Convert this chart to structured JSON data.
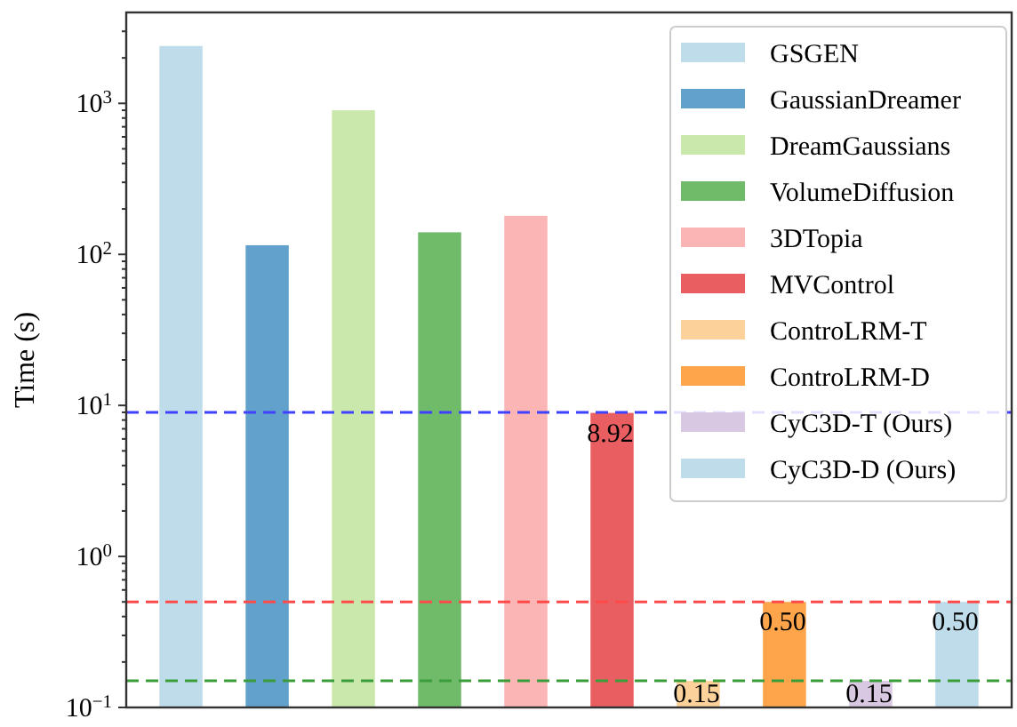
{
  "chart_data": {
    "type": "bar",
    "ylabel": "Time (s)",
    "categories": [
      null,
      null,
      null,
      null,
      null,
      null,
      null,
      null,
      null,
      null
    ],
    "series": [
      {
        "name": "GSGEN",
        "color": "#bfdcea",
        "values": [
          2400,
          null,
          null,
          null,
          null,
          null,
          null,
          null,
          null,
          null
        ]
      },
      {
        "name": "GaussianDreamer",
        "color": "#62a1cb",
        "values": [
          null,
          115,
          null,
          null,
          null,
          null,
          null,
          null,
          null,
          null
        ]
      },
      {
        "name": "DreamGaussians",
        "color": "#cbe8ac",
        "values": [
          null,
          null,
          900,
          null,
          null,
          null,
          null,
          null,
          null,
          null
        ]
      },
      {
        "name": "VolumeDiffusion",
        "color": "#70bb6a",
        "values": [
          null,
          null,
          null,
          140,
          null,
          null,
          null,
          null,
          null,
          null
        ]
      },
      {
        "name": "3DTopia",
        "color": "#fbb5b4",
        "values": [
          null,
          null,
          null,
          null,
          180,
          null,
          null,
          null,
          null,
          null
        ]
      },
      {
        "name": "MVControl",
        "color": "#e95e60",
        "values": [
          null,
          null,
          null,
          null,
          null,
          8.92,
          null,
          null,
          null,
          null
        ],
        "value_labels": [
          null,
          null,
          null,
          null,
          null,
          "8.92",
          null,
          null,
          null,
          null
        ]
      },
      {
        "name": "ControLRM-T",
        "color": "#fdd29a",
        "values": [
          null,
          null,
          null,
          null,
          null,
          null,
          0.15,
          null,
          null,
          null
        ],
        "value_labels": [
          null,
          null,
          null,
          null,
          null,
          null,
          "0.15",
          null,
          null,
          null
        ]
      },
      {
        "name": "ControLRM-D",
        "color": "#fea44a",
        "values": [
          null,
          null,
          null,
          null,
          null,
          null,
          null,
          0.5,
          null,
          null
        ],
        "value_labels": [
          null,
          null,
          null,
          null,
          null,
          null,
          null,
          "0.50",
          null,
          null
        ]
      },
      {
        "name": "CyC3D-T (Ours)",
        "color": "#d8c8e2",
        "values": [
          null,
          null,
          null,
          null,
          null,
          null,
          null,
          null,
          0.15,
          null
        ],
        "value_labels": [
          null,
          null,
          null,
          null,
          null,
          null,
          null,
          null,
          "0.15",
          null
        ]
      },
      {
        "name": "CyC3D-D (Ours)",
        "color": "#bfdcea",
        "values": [
          null,
          null,
          null,
          null,
          null,
          null,
          null,
          null,
          null,
          0.5
        ],
        "value_labels": [
          null,
          null,
          null,
          null,
          null,
          null,
          null,
          null,
          null,
          "0.50"
        ]
      }
    ],
    "log": "y",
    "ylim": [
      0.1,
      4000
    ],
    "yticks": [
      {
        "value": 0.1,
        "label": "10$^{−1}$"
      },
      {
        "value": 0.2,
        "label": null
      },
      {
        "value": 0.3,
        "label": null
      },
      {
        "value": 0.4,
        "label": null
      },
      {
        "value": 0.5,
        "label": null
      },
      {
        "value": 0.6,
        "label": null
      },
      {
        "value": 0.7,
        "label": null
      },
      {
        "value": 0.8,
        "label": null
      },
      {
        "value": 0.9,
        "label": null
      },
      {
        "value": 1,
        "label": "10$^{0}$"
      },
      {
        "value": 2,
        "label": null
      },
      {
        "value": 3,
        "label": null
      },
      {
        "value": 4,
        "label": null
      },
      {
        "value": 5,
        "label": null
      },
      {
        "value": 6,
        "label": null
      },
      {
        "value": 7,
        "label": null
      },
      {
        "value": 8,
        "label": null
      },
      {
        "value": 9,
        "label": null
      },
      {
        "value": 10,
        "label": "10$^{1}$"
      },
      {
        "value": 20,
        "label": null
      },
      {
        "value": 30,
        "label": null
      },
      {
        "value": 40,
        "label": null
      },
      {
        "value": 50,
        "label": null
      },
      {
        "value": 60,
        "label": null
      },
      {
        "value": 70,
        "label": null
      },
      {
        "value": 80,
        "label": null
      },
      {
        "value": 90,
        "label": null
      },
      {
        "value": 100,
        "label": "10$^{2}$"
      },
      {
        "value": 200,
        "label": null
      },
      {
        "value": 300,
        "label": null
      },
      {
        "value": 400,
        "label": null
      },
      {
        "value": 500,
        "label": null
      },
      {
        "value": 600,
        "label": null
      },
      {
        "value": 700,
        "label": null
      },
      {
        "value": 800,
        "label": null
      },
      {
        "value": 900,
        "label": null
      },
      {
        "value": 1000,
        "label": "10$^{3}$"
      },
      {
        "value": 2000,
        "label": null
      },
      {
        "value": 3000,
        "label": null
      }
    ],
    "tick_labels": "y",
    "legend": "top right",
    "ref_lines": [
      {
        "axis": "y",
        "value": 9,
        "color": "#4040ff",
        "line_style": "dashed"
      },
      {
        "axis": "y",
        "value": 0.5,
        "color": "#ff4a4a",
        "line_style": "dashed"
      },
      {
        "axis": "y",
        "value": 0.15,
        "color": "#3a9d3a",
        "line_style": "dashed"
      }
    ]
  }
}
